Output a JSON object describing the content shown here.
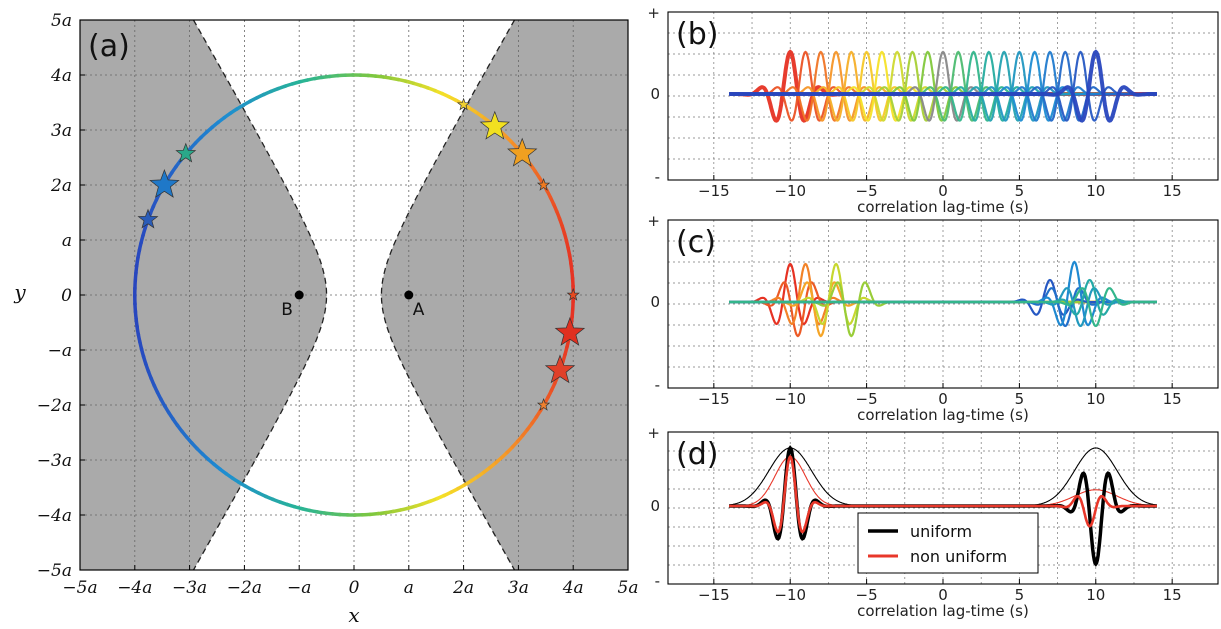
{
  "chart_data": [
    {
      "panel": "(a)",
      "type": "scatter",
      "xlabel": "x",
      "ylabel": "y",
      "xlim": [
        -5,
        5
      ],
      "ylim": [
        -5,
        5
      ],
      "unit": "a",
      "grid": true,
      "xticks": [
        "−5a",
        "−4a",
        "−3a",
        "−2a",
        "−a",
        "0",
        "a",
        "2a",
        "3a",
        "4a",
        "5a"
      ],
      "yticks": [
        "5a",
        "4a",
        "3a",
        "2a",
        "a",
        "0",
        "−a",
        "−2a",
        "−3a",
        "−4a",
        "−5a"
      ],
      "circle_radius": 4,
      "receivers": [
        {
          "label": "A",
          "x": 1,
          "y": 0
        },
        {
          "label": "B",
          "x": -1,
          "y": 0
        }
      ],
      "stationary_phase_boundary": "hyperbola with foci A and B, a = 0.5",
      "sources": [
        {
          "x": -3.76,
          "y": 1.37,
          "size": "medium",
          "color": "#2a5cb8"
        },
        {
          "x": -3.46,
          "y": 2.0,
          "size": "large",
          "color": "#1f78c8"
        },
        {
          "x": -3.07,
          "y": 2.57,
          "size": "medium",
          "color": "#2aa889"
        },
        {
          "x": 2.57,
          "y": 3.06,
          "size": "large",
          "color": "#f2e020"
        },
        {
          "x": 3.07,
          "y": 2.57,
          "size": "large",
          "color": "#f0a020"
        },
        {
          "x": 2.0,
          "y": 3.46,
          "size": "small",
          "color": "#f0d030"
        },
        {
          "x": 3.76,
          "y": -1.37,
          "size": "large",
          "color": "#e0402a"
        },
        {
          "x": 3.94,
          "y": -0.69,
          "size": "large",
          "color": "#e03020"
        },
        {
          "x": 3.46,
          "y": 2.0,
          "size": "small",
          "color": "#f07a20"
        },
        {
          "x": 4.0,
          "y": 0.0,
          "size": "small",
          "color": "#e84a20"
        },
        {
          "x": 3.46,
          "y": -2.0,
          "size": "small",
          "color": "#f08030"
        }
      ]
    },
    {
      "panel": "(b)",
      "type": "line",
      "xlabel": "correlation lag-time (s)",
      "xlim": [
        -18,
        18
      ],
      "xticks": [
        "−15",
        "−10",
        "−5",
        "0",
        "5",
        "10",
        "15"
      ],
      "yticks": [
        "+",
        "0",
        "-"
      ],
      "grid": true,
      "description": "correlation of each source contributing",
      "lags": [
        -10,
        -9,
        -8,
        -7,
        -6,
        -5,
        -4,
        -3,
        -2,
        -1,
        0,
        1,
        2,
        3,
        4,
        5,
        6,
        7,
        8,
        9,
        10
      ]
    },
    {
      "panel": "(c)",
      "type": "line",
      "xlabel": "correlation lag-time (s)",
      "xlim": [
        -18,
        18
      ],
      "xticks": [
        "−15",
        "−10",
        "−5",
        "0",
        "5",
        "10",
        "15"
      ],
      "yticks": [
        "+",
        "0",
        "-"
      ],
      "grid": true
    },
    {
      "panel": "(d)",
      "type": "line",
      "xlabel": "correlation lag-time (s)",
      "xlim": [
        -18,
        18
      ],
      "xticks": [
        "−15",
        "−10",
        "−5",
        "0",
        "5",
        "10",
        "15"
      ],
      "yticks": [
        "+",
        "0",
        "-"
      ],
      "grid": true,
      "legend": "bottom-center",
      "series": [
        {
          "name": "uniform",
          "color": "#000000"
        },
        {
          "name": "non uniform",
          "color": "#e8372a"
        }
      ]
    }
  ],
  "panel_labels": {
    "a": "(a)",
    "b": "(b)",
    "c": "(c)",
    "d": "(d)"
  },
  "axis_labels": {
    "x": "x",
    "y": "y",
    "lag": "correlation lag-time (s)"
  },
  "point_labels": {
    "A": "A",
    "B": "B"
  },
  "legend": {
    "uniform": "uniform",
    "non_uniform": "non uniform"
  }
}
